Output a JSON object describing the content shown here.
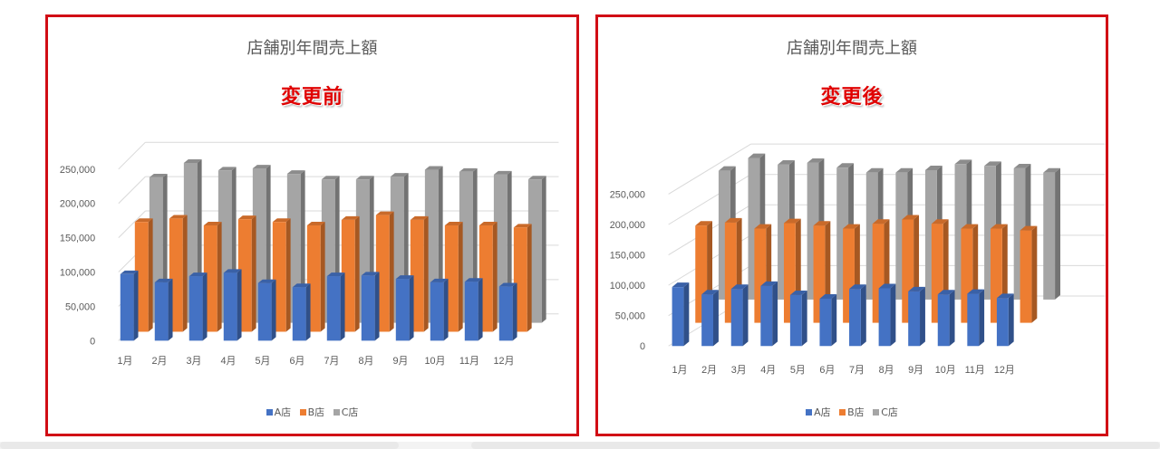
{
  "colors": {
    "frame": "#d10d15",
    "A": "#4472c4",
    "B": "#ed7d31",
    "C": "#a5a5a5"
  },
  "legend": [
    {
      "label": "A店",
      "color": "#4472c4"
    },
    {
      "label": "B店",
      "color": "#ed7d31"
    },
    {
      "label": "C店",
      "color": "#a5a5a5"
    }
  ],
  "chart_data": [
    {
      "type": "bar",
      "title": "店舗別年間売上額",
      "annotation": "変更前",
      "layout": "3D column (series side by side)",
      "categories": [
        "1月",
        "2月",
        "3月",
        "4月",
        "5月",
        "6月",
        "7月",
        "8月",
        "9月",
        "10月",
        "11月",
        "12月"
      ],
      "y_ticks": [
        "0",
        "50,000",
        "100,000",
        "150,000",
        "200,000",
        "250,000"
      ],
      "ylim": [
        0,
        250000
      ],
      "grid": true,
      "legend_position": "bottom",
      "series": [
        {
          "name": "A店",
          "values": [
            97000,
            85000,
            94000,
            99000,
            84000,
            78000,
            94000,
            95000,
            90000,
            85000,
            86000,
            79000
          ]
        },
        {
          "name": "B店",
          "values": [
            160000,
            165000,
            155000,
            164000,
            160000,
            155000,
            163000,
            170000,
            163000,
            155000,
            155000,
            152000
          ]
        },
        {
          "name": "C店",
          "values": [
            212000,
            233000,
            222000,
            225000,
            217000,
            209000,
            209000,
            213000,
            223000,
            220000,
            216000,
            209000
          ]
        }
      ]
    },
    {
      "type": "bar",
      "title": "店舗別年間売上額",
      "annotation": "変更後",
      "layout": "3D column (series in depth)",
      "categories": [
        "1月",
        "2月",
        "3月",
        "4月",
        "5月",
        "6月",
        "7月",
        "8月",
        "9月",
        "10月",
        "11月",
        "12月"
      ],
      "y_ticks": [
        "0",
        "50,000",
        "100,000",
        "150,000",
        "200,000",
        "250,000"
      ],
      "ylim": [
        0,
        250000
      ],
      "grid": true,
      "legend_position": "bottom",
      "series": [
        {
          "name": "A店",
          "values": [
            97000,
            85000,
            94000,
            99000,
            84000,
            78000,
            94000,
            95000,
            90000,
            85000,
            86000,
            79000
          ]
        },
        {
          "name": "B店",
          "values": [
            160000,
            165000,
            155000,
            164000,
            160000,
            155000,
            163000,
            170000,
            163000,
            155000,
            155000,
            152000
          ]
        },
        {
          "name": "C店",
          "values": [
            212000,
            233000,
            222000,
            225000,
            217000,
            209000,
            209000,
            213000,
            223000,
            220000,
            216000,
            209000
          ]
        }
      ]
    }
  ]
}
